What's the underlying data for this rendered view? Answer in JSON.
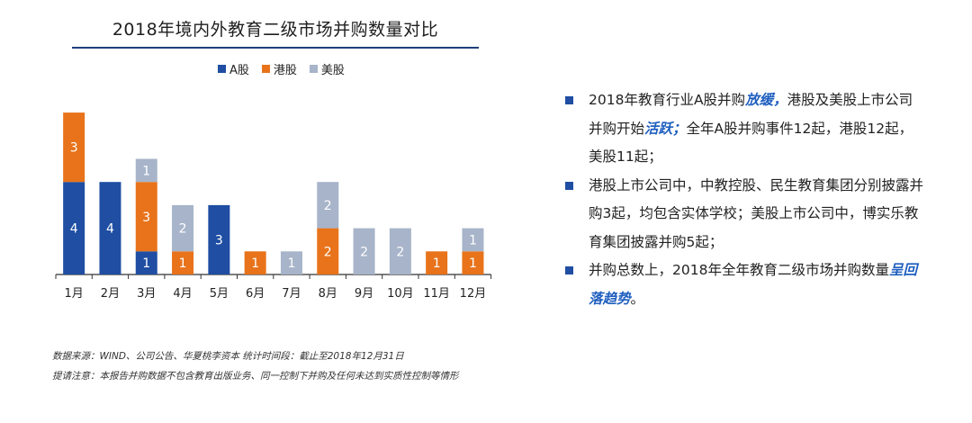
{
  "colors": {
    "a_share": "#1f4ea3",
    "hk_share": "#e8731a",
    "us_share": "#a7b4c9",
    "accent": "#1f5fbf"
  },
  "legend": [
    {
      "name": "A股",
      "color": "#1f4ea3"
    },
    {
      "name": "港股",
      "color": "#e8731a"
    },
    {
      "name": "美股",
      "color": "#a7b4c9"
    }
  ],
  "chart_data": {
    "type": "bar",
    "stacked": true,
    "title": "2018年境内外教育二级市场并购数量对比",
    "xlabel": "",
    "ylabel": "",
    "ylim": [
      0,
      7
    ],
    "grid": false,
    "legend_position": "top",
    "categories": [
      "1月",
      "2月",
      "3月",
      "4月",
      "5月",
      "6月",
      "7月",
      "8月",
      "9月",
      "10月",
      "11月",
      "12月"
    ],
    "series": [
      {
        "name": "A股",
        "color": "#1f4ea3",
        "values": [
          4,
          4,
          1,
          0,
          3,
          0,
          0,
          0,
          0,
          0,
          0,
          0
        ]
      },
      {
        "name": "港股",
        "color": "#e8731a",
        "values": [
          3,
          0,
          3,
          1,
          0,
          1,
          0,
          2,
          0,
          0,
          1,
          1
        ]
      },
      {
        "name": "美股",
        "color": "#a7b4c9",
        "values": [
          0,
          0,
          1,
          2,
          0,
          0,
          1,
          2,
          2,
          2,
          0,
          1
        ]
      }
    ]
  },
  "bullets": [
    [
      {
        "text": "2018年教育行业A股并购",
        "em": false
      },
      {
        "text": "放缓，",
        "em": true
      },
      {
        "text": "港股及美股上市公司并购开始",
        "em": false
      },
      {
        "text": "活跃；",
        "em": true
      },
      {
        "text": "全年A股并购事件12起，港股12起，美股11起；",
        "em": false
      }
    ],
    [
      {
        "text": "港股上市公司中，中教控股、民生教育集团分别披露并购3起，均包含实体学校；美股上市公司中，博实乐教育集团披露并购5起；",
        "em": false
      }
    ],
    [
      {
        "text": "并购总数上，2018年全年教育二级市场并购数量",
        "em": false
      },
      {
        "text": "呈回落趋势",
        "em": true
      },
      {
        "text": "。",
        "em": false
      }
    ]
  ],
  "footer": {
    "source": "数据来源：WIND、公司公告、华夏桃李资本    统计时间段：截止至2018年12月31日",
    "note": "提请注意：本报告并购数据不包含教育出版业务、同一控制下并购及任何未达到实质性控制等情形"
  }
}
